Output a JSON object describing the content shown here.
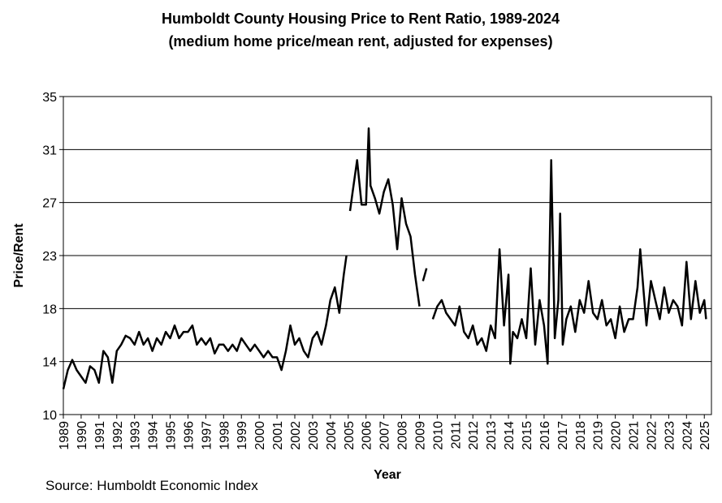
{
  "chart_data": {
    "type": "line",
    "title": "Humboldt County Housing Price to Rent Ratio, 1989-2024",
    "subtitle": "(medium home price/mean rent, adjusted for expenses)",
    "x_label": "Year",
    "y_label": "Price/Rent",
    "source": "Source: Humboldt Economic Index",
    "grid": true,
    "xlim": [
      1989,
      2025.4
    ],
    "ylim": [
      10,
      35
    ],
    "xticks": [
      1989,
      1990,
      1991,
      1992,
      1993,
      1994,
      1995,
      1996,
      1997,
      1998,
      1999,
      2000,
      2001,
      2002,
      2003,
      2004,
      2005,
      2006,
      2007,
      2008,
      2009,
      2010,
      2011,
      2012,
      2013,
      2014,
      2015,
      2016,
      2017,
      2018,
      2019,
      2020,
      2021,
      2022,
      2023,
      2024,
      2025
    ],
    "yticks": [
      10,
      {
        "value": 14.1667,
        "label": "14"
      },
      {
        "value": 18.3333,
        "label": "18"
      },
      {
        "value": 22.5,
        "label": "23"
      },
      {
        "value": 26.6667,
        "label": "27"
      },
      {
        "value": 30.8333,
        "label": "31"
      },
      35
    ],
    "series": [
      {
        "name": "Price/Rent",
        "color": "#000000",
        "x": [
          1989,
          1989.25,
          1989.5,
          1989.75,
          1990,
          1990.25,
          1990.5,
          1990.75,
          1991,
          1991.25,
          1991.5,
          1991.75,
          1992,
          1992.25,
          1992.5,
          1992.75,
          1993,
          1993.25,
          1993.5,
          1993.75,
          1994,
          1994.25,
          1994.5,
          1994.75,
          1995,
          1995.25,
          1995.5,
          1995.75,
          1996,
          1996.25,
          1996.5,
          1996.75,
          1997,
          1997.25,
          1997.5,
          1997.75,
          1998,
          1998.25,
          1998.5,
          1998.75,
          1999,
          1999.25,
          1999.5,
          1999.75,
          2000,
          2000.25,
          2000.5,
          2000.75,
          2001,
          2001.25,
          2001.5,
          2001.75,
          2002,
          2002.25,
          2002.5,
          2002.75,
          2003,
          2003.25,
          2003.5,
          2003.75,
          2004,
          2004.25,
          2004.5,
          2004.75,
          2004.9,
          2005,
          2005.1,
          2005.25,
          2005.5,
          2005.75,
          2006,
          2006.15,
          2006.25,
          2006.5,
          2006.75,
          2007,
          2007.25,
          2007.5,
          2007.75,
          2008,
          2008.25,
          2008.5,
          2008.75,
          2009,
          2009.1,
          2009.2,
          2009.4,
          2009.6,
          2009.75,
          2010,
          2010.25,
          2010.5,
          2010.75,
          2011,
          2011.25,
          2011.5,
          2011.75,
          2012,
          2012.25,
          2012.5,
          2012.75,
          2013,
          2013.25,
          2013.5,
          2013.75,
          2014,
          2014.1,
          2014.25,
          2014.5,
          2014.75,
          2015,
          2015.25,
          2015.5,
          2015.75,
          2016,
          2016.2,
          2016.4,
          2016.6,
          2016.8,
          2016.9,
          2017.05,
          2017.25,
          2017.5,
          2017.75,
          2018,
          2018.25,
          2018.5,
          2018.75,
          2019,
          2019.25,
          2019.5,
          2019.75,
          2020,
          2020.25,
          2020.5,
          2020.75,
          2021,
          2021.25,
          2021.4,
          2021.6,
          2021.75,
          2022,
          2022.25,
          2022.5,
          2022.75,
          2023,
          2023.25,
          2023.5,
          2023.75,
          2024,
          2024.25,
          2024.5,
          2024.75,
          2025,
          2025.1
        ],
        "values": [
          12,
          13.5,
          14.3,
          13.5,
          13,
          12.5,
          13.8,
          13.5,
          12.5,
          15,
          14.5,
          12.5,
          15,
          15.5,
          16.2,
          16,
          15.5,
          16.5,
          15.5,
          16,
          15,
          16,
          15.5,
          16.5,
          16,
          17,
          16,
          16.5,
          16.5,
          17,
          15.5,
          16,
          15.5,
          16,
          14.8,
          15.5,
          15.5,
          15,
          15.5,
          15,
          16,
          15.5,
          15,
          15.5,
          15,
          14.5,
          15,
          14.5,
          14.5,
          13.5,
          15,
          17,
          15.5,
          16,
          15,
          14.5,
          16,
          16.5,
          15.5,
          17,
          19,
          20,
          18,
          21,
          22.5,
          null,
          26,
          27.5,
          30,
          26.5,
          26.5,
          32.5,
          28,
          27,
          25.8,
          27.5,
          28.5,
          26.5,
          23,
          27,
          25,
          24,
          21,
          18.5,
          null,
          20.5,
          21.5,
          null,
          17.5,
          18.5,
          19,
          18,
          17.5,
          17,
          18.5,
          16.5,
          16,
          17,
          15.5,
          16,
          15,
          17,
          16,
          23,
          17,
          21,
          14,
          16.5,
          16,
          17.5,
          16,
          21.5,
          15.5,
          19,
          17,
          14,
          30,
          16,
          19,
          25.8,
          15.5,
          17.5,
          18.5,
          16.5,
          19,
          18,
          20.5,
          18,
          17.5,
          19,
          17,
          17.5,
          16,
          18.5,
          16.5,
          17.5,
          17.5,
          20,
          23,
          19.5,
          17,
          20.5,
          19,
          17.5,
          20,
          18,
          19,
          18.5,
          17,
          22,
          17.5,
          20.5,
          18,
          19,
          17.5
        ]
      }
    ]
  }
}
